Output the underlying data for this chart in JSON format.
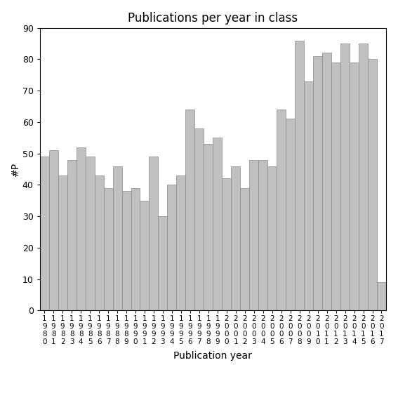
{
  "title": "Publications per year in class",
  "xlabel": "Publication year",
  "ylabel": "#P",
  "bar_color": "#c0c0c0",
  "bar_edgecolor": "#888888",
  "years": [
    1980,
    1981,
    1982,
    1983,
    1984,
    1985,
    1986,
    1987,
    1988,
    1989,
    1990,
    1991,
    1992,
    1993,
    1994,
    1995,
    1996,
    1997,
    1998,
    1999,
    2000,
    2001,
    2002,
    2003,
    2004,
    2005,
    2006,
    2007,
    2008,
    2009,
    2010,
    2011,
    2012,
    2013,
    2014,
    2015,
    2016,
    2017
  ],
  "values": [
    49,
    51,
    43,
    48,
    52,
    49,
    43,
    39,
    46,
    38,
    39,
    35,
    49,
    30,
    40,
    43,
    64,
    58,
    53,
    55,
    42,
    46,
    39,
    48,
    48,
    46,
    64,
    61,
    86,
    73,
    81,
    82,
    79,
    85,
    79,
    85,
    80,
    9
  ],
  "ylim": [
    0,
    90
  ],
  "yticks": [
    0,
    10,
    20,
    30,
    40,
    50,
    60,
    70,
    80,
    90
  ],
  "background_color": "#ffffff",
  "figsize": [
    5.67,
    5.67
  ],
  "dpi": 100
}
